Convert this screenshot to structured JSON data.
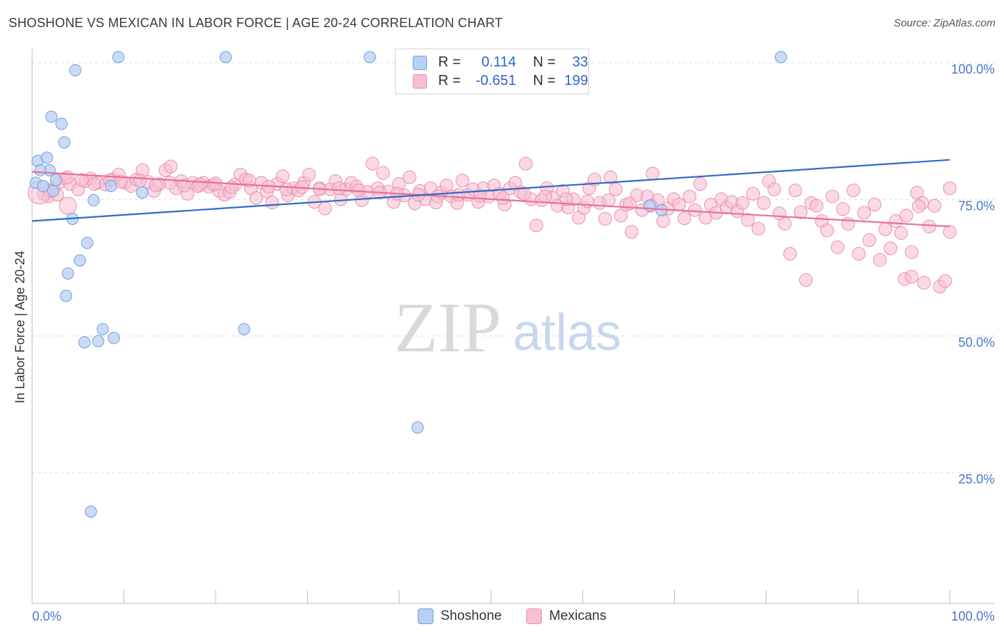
{
  "title": "SHOSHONE VS MEXICAN IN LABOR FORCE | AGE 20-24 CORRELATION CHART",
  "source": "Source: ZipAtlas.com",
  "watermark": {
    "zip": "ZIP",
    "atlas": "atlas"
  },
  "colors": {
    "shoshone_fill": "#b8d0f2",
    "shoshone_stroke": "#6f9fe0",
    "shoshone_line": "#2f6cc8",
    "mexican_fill": "#f7bfd3",
    "mexican_stroke": "#ec8fb0",
    "mexican_line": "#e8709a",
    "tick_text": "#4a78c8",
    "grid": "#dddddd"
  },
  "legend": {
    "rows": [
      {
        "r_label": "R =",
        "r_value": "0.114",
        "n_label": "N =",
        "n_value": "33"
      },
      {
        "r_label": "R =",
        "r_value": "-0.651",
        "n_label": "N =",
        "n_value": "199"
      }
    ],
    "bottom": [
      "Shoshone",
      "Mexicans"
    ]
  },
  "chart_data": {
    "type": "scatter",
    "xlabel": "",
    "ylabel": "In Labor Force | Age 20-24",
    "xlim": [
      0,
      100
    ],
    "ylim": [
      0,
      100
    ],
    "x_tick_labels": [
      "0.0%",
      "100.0%"
    ],
    "y_tick_labels": [
      "100.0%",
      "75.0%",
      "50.0%",
      "25.0%"
    ],
    "y_tick_values": [
      100,
      75,
      50,
      25
    ],
    "grid": "horizontal dashed",
    "legend_position": "top-center",
    "series": [
      {
        "name": "Shoshone",
        "r": 0.114,
        "n": 33,
        "trend": {
          "x0": 0,
          "y0": 70.0,
          "x1": 100,
          "y1": 81.2
        },
        "points": [
          [
            9.4,
            100
          ],
          [
            21.1,
            100
          ],
          [
            36.8,
            100
          ],
          [
            81.6,
            100
          ],
          [
            4.7,
            97.6
          ],
          [
            2.1,
            89.1
          ],
          [
            3.2,
            87.8
          ],
          [
            3.5,
            84.4
          ],
          [
            0.6,
            81.0
          ],
          [
            1.6,
            81.6
          ],
          [
            1.9,
            79.3
          ],
          [
            0.9,
            79.3
          ],
          [
            2.6,
            77.5
          ],
          [
            0.4,
            77.0
          ],
          [
            1.2,
            76.4
          ],
          [
            2.3,
            75.5
          ],
          [
            8.6,
            76.4
          ],
          [
            12.0,
            75.2
          ],
          [
            67.3,
            72.8
          ],
          [
            68.6,
            72.0
          ],
          [
            6.7,
            73.8
          ],
          [
            4.4,
            70.4
          ],
          [
            6.0,
            66.0
          ],
          [
            5.2,
            62.8
          ],
          [
            3.9,
            60.4
          ],
          [
            3.7,
            56.3
          ],
          [
            7.7,
            50.2
          ],
          [
            23.1,
            50.2
          ],
          [
            5.7,
            47.8
          ],
          [
            7.2,
            48.0
          ],
          [
            8.9,
            48.6
          ],
          [
            42.0,
            32.2
          ],
          [
            6.4,
            16.8
          ]
        ]
      },
      {
        "name": "Mexicans",
        "r": -0.651,
        "n": 199,
        "trend": {
          "x0": 0,
          "y0": 79.0,
          "x1": 100,
          "y1": 69.0
        },
        "points": [
          [
            0.3,
            75.0
          ],
          [
            0.8,
            74.5
          ],
          [
            1.4,
            76.0
          ],
          [
            2.0,
            77.0
          ],
          [
            2.7,
            77.8
          ],
          [
            3.3,
            76.8
          ],
          [
            4.2,
            75.8
          ],
          [
            5.0,
            77.3
          ],
          [
            5.6,
            77.8
          ],
          [
            6.4,
            77.0
          ],
          [
            7.3,
            76.7
          ],
          [
            8.1,
            77.6
          ],
          [
            8.8,
            78.5
          ],
          [
            9.5,
            77.0
          ],
          [
            10.2,
            76.4
          ],
          [
            10.8,
            77.6
          ],
          [
            11.5,
            79.3
          ],
          [
            12.1,
            77.2
          ],
          [
            12.8,
            75.5
          ],
          [
            13.4,
            76.8
          ],
          [
            14.1,
            79.3
          ],
          [
            14.7,
            80.0
          ],
          [
            15.3,
            76.0
          ],
          [
            15.9,
            77.3
          ],
          [
            16.6,
            75.0
          ],
          [
            17.2,
            77.0
          ],
          [
            17.8,
            76.4
          ],
          [
            18.4,
            77.0
          ],
          [
            19.0,
            76.3
          ],
          [
            19.6,
            76.6
          ],
          [
            20.2,
            75.5
          ],
          [
            20.8,
            74.8
          ],
          [
            21.4,
            75.3
          ],
          [
            22.0,
            76.7
          ],
          [
            22.6,
            78.5
          ],
          [
            23.2,
            77.6
          ],
          [
            23.8,
            76.0
          ],
          [
            24.4,
            74.2
          ],
          [
            25.0,
            77.0
          ],
          [
            25.6,
            75.4
          ],
          [
            26.2,
            73.4
          ],
          [
            26.8,
            76.8
          ],
          [
            27.4,
            78.2
          ],
          [
            28.0,
            74.7
          ],
          [
            28.6,
            76.0
          ],
          [
            29.2,
            75.6
          ],
          [
            29.8,
            77.0
          ],
          [
            30.4,
            78.5
          ],
          [
            31.0,
            73.5
          ],
          [
            31.6,
            76.0
          ],
          [
            32.2,
            72.3
          ],
          [
            32.8,
            75.8
          ],
          [
            33.4,
            77.3
          ],
          [
            34.0,
            74.0
          ],
          [
            34.6,
            75.8
          ],
          [
            35.2,
            77.0
          ],
          [
            35.8,
            76.3
          ],
          [
            36.4,
            73.8
          ],
          [
            37.0,
            75.3
          ],
          [
            37.6,
            80.5
          ],
          [
            38.2,
            76.0
          ],
          [
            38.8,
            78.8
          ],
          [
            39.4,
            75.4
          ],
          [
            40.0,
            73.5
          ],
          [
            40.6,
            76.8
          ],
          [
            41.2,
            74.7
          ],
          [
            41.8,
            78.0
          ],
          [
            42.4,
            73.2
          ],
          [
            43.0,
            75.5
          ],
          [
            43.6,
            74.0
          ],
          [
            44.2,
            76.0
          ],
          [
            44.8,
            73.4
          ],
          [
            45.4,
            75.2
          ],
          [
            46.0,
            76.5
          ],
          [
            46.6,
            74.5
          ],
          [
            47.2,
            73.3
          ],
          [
            47.8,
            77.4
          ],
          [
            48.4,
            74.8
          ],
          [
            49.0,
            75.8
          ],
          [
            49.6,
            73.5
          ],
          [
            50.2,
            76.0
          ],
          [
            50.8,
            74.5
          ],
          [
            51.4,
            76.5
          ],
          [
            52.0,
            75.0
          ],
          [
            52.6,
            73.0
          ],
          [
            53.2,
            76.0
          ],
          [
            53.8,
            77.0
          ],
          [
            54.4,
            75.3
          ],
          [
            55.0,
            80.5
          ],
          [
            55.6,
            74.0
          ],
          [
            56.2,
            69.2
          ],
          [
            56.8,
            73.8
          ],
          [
            57.4,
            76.0
          ],
          [
            58.0,
            74.3
          ],
          [
            58.6,
            72.8
          ],
          [
            59.2,
            75.5
          ],
          [
            59.8,
            72.5
          ],
          [
            60.4,
            74.0
          ],
          [
            61.0,
            70.6
          ],
          [
            61.6,
            72.4
          ],
          [
            62.2,
            76.0
          ],
          [
            62.8,
            77.6
          ],
          [
            63.4,
            73.3
          ],
          [
            64.0,
            70.4
          ],
          [
            64.6,
            78.0
          ],
          [
            65.2,
            75.8
          ],
          [
            65.8,
            71.0
          ],
          [
            66.4,
            73.0
          ],
          [
            67.0,
            68.0
          ],
          [
            67.6,
            74.7
          ],
          [
            68.2,
            72.0
          ],
          [
            68.8,
            74.5
          ],
          [
            69.4,
            78.7
          ],
          [
            70.0,
            73.8
          ],
          [
            70.6,
            70.0
          ],
          [
            71.2,
            72.3
          ],
          [
            71.8,
            74.0
          ],
          [
            72.4,
            73.0
          ],
          [
            73.0,
            70.5
          ],
          [
            73.6,
            74.5
          ],
          [
            74.2,
            72.0
          ],
          [
            74.8,
            76.8
          ],
          [
            75.4,
            70.6
          ],
          [
            76.0,
            73.0
          ],
          [
            76.6,
            71.5
          ],
          [
            77.2,
            74.0
          ],
          [
            77.8,
            72.5
          ],
          [
            78.4,
            73.5
          ],
          [
            79.0,
            71.8
          ],
          [
            79.6,
            73.3
          ],
          [
            80.2,
            70.2
          ],
          [
            80.8,
            75.0
          ],
          [
            81.4,
            68.6
          ],
          [
            82.0,
            73.3
          ],
          [
            82.6,
            77.3
          ],
          [
            83.2,
            75.8
          ],
          [
            83.8,
            71.4
          ],
          [
            84.4,
            69.5
          ],
          [
            85.0,
            64.0
          ],
          [
            85.6,
            75.6
          ],
          [
            86.2,
            71.6
          ],
          [
            86.8,
            59.2
          ],
          [
            87.4,
            73.3
          ],
          [
            88.0,
            72.8
          ],
          [
            88.6,
            70.0
          ],
          [
            89.2,
            68.3
          ],
          [
            89.8,
            74.5
          ],
          [
            90.4,
            65.2
          ],
          [
            91.0,
            72.2
          ],
          [
            91.6,
            69.5
          ],
          [
            92.2,
            75.6
          ],
          [
            92.8,
            64.0
          ],
          [
            93.4,
            71.5
          ],
          [
            94.0,
            66.5
          ],
          [
            94.6,
            73.0
          ],
          [
            95.2,
            62.9
          ],
          [
            95.8,
            68.5
          ],
          [
            96.4,
            65.0
          ],
          [
            97.0,
            70.0
          ],
          [
            97.6,
            67.8
          ],
          [
            98.2,
            71.0
          ],
          [
            98.8,
            64.3
          ],
          [
            99.4,
            75.2
          ],
          [
            100.0,
            73.3
          ],
          [
            98.0,
            59.4
          ],
          [
            98.8,
            59.8
          ],
          [
            99.6,
            72.7
          ],
          [
            100.2,
            58.7
          ],
          [
            100.8,
            69.0
          ],
          [
            101.4,
            72.8
          ],
          [
            102.0,
            58.0
          ],
          [
            102.6,
            59.0
          ],
          [
            103.2,
            68.0
          ],
          [
            103.8,
            76.0
          ],
          [
            1.0,
            75.5
          ],
          [
            1.8,
            74.8
          ],
          [
            3.0,
            78.0
          ],
          [
            4.6,
            77.5
          ],
          [
            6.0,
            76.8
          ],
          [
            7.8,
            77.5
          ],
          [
            9.0,
            77.2
          ],
          [
            11.2,
            77.4
          ],
          [
            13.0,
            76.5
          ],
          [
            14.6,
            77.0
          ],
          [
            16.2,
            76.5
          ],
          [
            18.0,
            76.7
          ],
          [
            19.8,
            76.9
          ],
          [
            21.6,
            76.2
          ],
          [
            23.6,
            77.4
          ],
          [
            25.8,
            76.3
          ],
          [
            27.8,
            75.8
          ],
          [
            29.6,
            76.2
          ],
          [
            31.6,
            75.8
          ],
          [
            33.8,
            76.0
          ],
          [
            36.0,
            75.6
          ],
          [
            38.4,
            75.2
          ],
          [
            40.4,
            75.0
          ],
          [
            42.8,
            74.8
          ],
          [
            45.0,
            74.5
          ],
          [
            47.4,
            74.8
          ],
          [
            49.8,
            74.6
          ],
          [
            52.4,
            74.2
          ],
          [
            54.8,
            75.0
          ],
          [
            57.2,
            74.5
          ],
          [
            59.6,
            74.0
          ],
          [
            62.0,
            73.6
          ],
          [
            64.4,
            73.8
          ],
          [
            66.8,
            73.2
          ],
          [
            69.2,
            72.8
          ]
        ]
      }
    ]
  }
}
